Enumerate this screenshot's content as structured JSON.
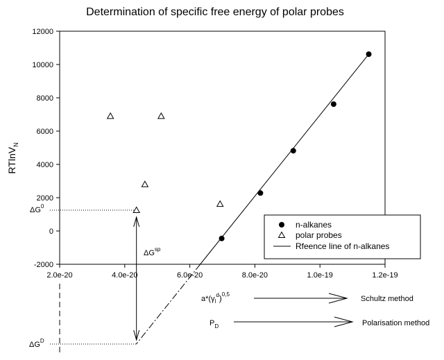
{
  "chart_data": {
    "type": "scatter",
    "title": "Determination of specific free energy of polar probes",
    "ylabel": {
      "base": "RTlnV",
      "sub": "N"
    },
    "xlabel": "",
    "xlim": [
      2e-20,
      1.2e-19
    ],
    "ylim": [
      -2000,
      12000
    ],
    "x_ticks": [
      {
        "value": 2e-20,
        "label": "2.0e-20"
      },
      {
        "value": 4e-20,
        "label": "4.0e-20"
      },
      {
        "value": 6e-20,
        "label": "6.0e-20"
      },
      {
        "value": 8e-20,
        "label": "8.0e-20"
      },
      {
        "value": 1e-19,
        "label": "1.0e-19"
      },
      {
        "value": 1.2e-19,
        "label": "1.2e-19"
      }
    ],
    "y_ticks": [
      {
        "value": -2000,
        "label": "-2000"
      },
      {
        "value": 0,
        "label": "0"
      },
      {
        "value": 2000,
        "label": "2000"
      },
      {
        "value": 4000,
        "label": "4000"
      },
      {
        "value": 6000,
        "label": "6000"
      },
      {
        "value": 8000,
        "label": "8000"
      },
      {
        "value": 10000,
        "label": "10000"
      },
      {
        "value": 12000,
        "label": "12000"
      }
    ],
    "grid": false,
    "series": [
      {
        "name": "n-alkanes",
        "marker": "filled-circle",
        "points": [
          {
            "x": 6.98e-20,
            "y": -450
          },
          {
            "x": 8.17e-20,
            "y": 2280
          },
          {
            "x": 9.18e-20,
            "y": 4820
          },
          {
            "x": 1.042e-19,
            "y": 7620
          },
          {
            "x": 1.15e-19,
            "y": 10620
          }
        ]
      },
      {
        "name": "polar probes",
        "marker": "open-triangle",
        "points": [
          {
            "x": 3.56e-20,
            "y": 6900
          },
          {
            "x": 5.12e-20,
            "y": 6900
          },
          {
            "x": 4.62e-20,
            "y": 2800
          },
          {
            "x": 4.36e-20,
            "y": 1250
          },
          {
            "x": 6.93e-20,
            "y": 1620
          }
        ]
      },
      {
        "name": "Rfeence line of n-alkanes",
        "marker": "line",
        "points": [
          {
            "x": 6.32e-20,
            "y": -2000
          },
          {
            "x": 1.15e-19,
            "y": 10620
          }
        ]
      }
    ],
    "legend": {
      "position": "bottom-right",
      "entries": [
        "n-alkanes",
        "polar probes",
        "Rfeence line of n-alkanes"
      ]
    },
    "annotations": {
      "dG0": {
        "base": "ΔG",
        "sup": "0",
        "y": 1250,
        "x_ref": 4.36e-20
      },
      "dGsp": {
        "base": "ΔG",
        "sup": "sp",
        "x": 4.36e-20,
        "y_top": 1250
      },
      "dGD": {
        "base": "ΔG",
        "sup": "D"
      },
      "x_axis_expr": {
        "base": "a*(γ",
        "sub": "l",
        "sup": "d",
        "tail": ")",
        "exp": "0,5"
      },
      "pd": {
        "base": "P",
        "sub": "D"
      },
      "schultz": "Schultz method",
      "polarisation": "Polarisation method"
    }
  }
}
